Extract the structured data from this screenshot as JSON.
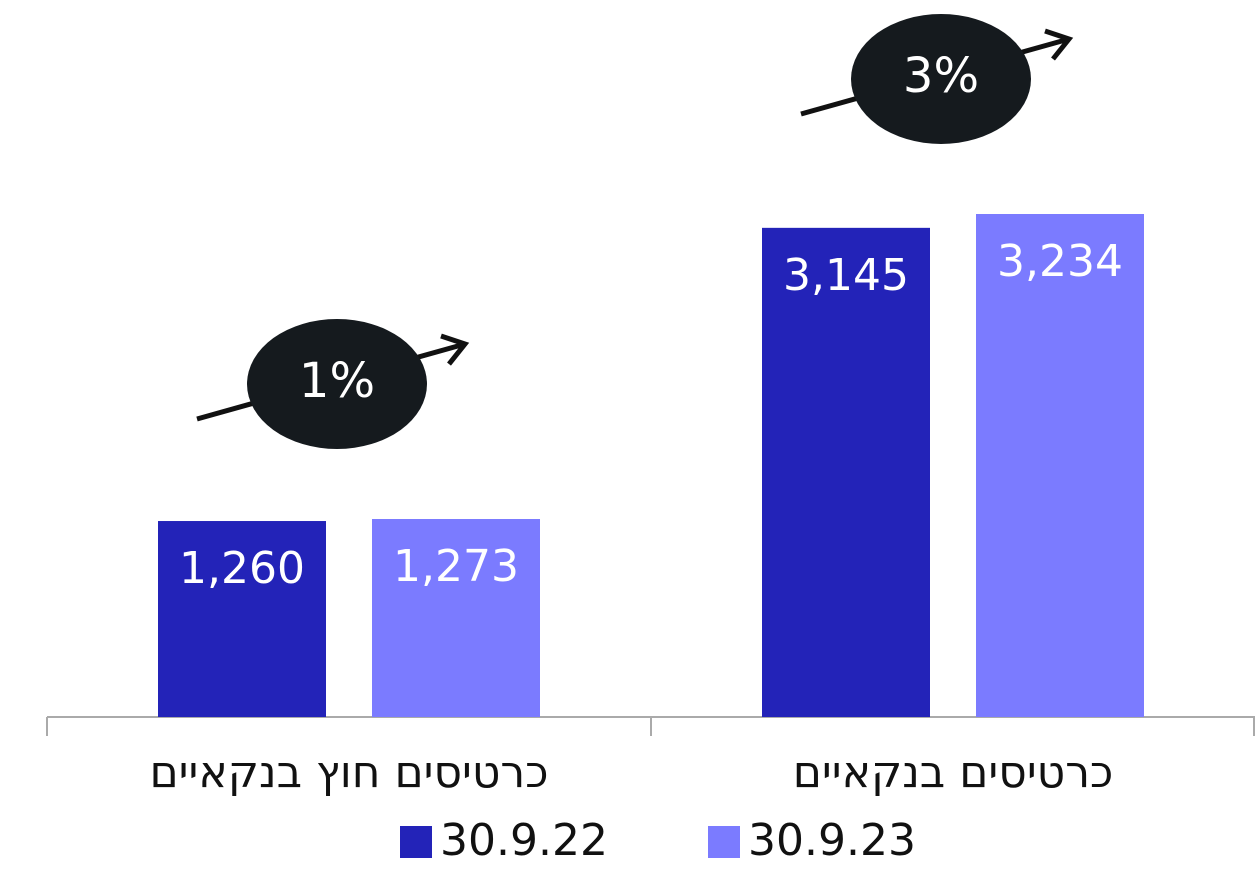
{
  "chart_data": {
    "type": "bar",
    "categories": [
      "כרטיסים חוץ בנקאיים",
      "כרטיסים בנקאיים"
    ],
    "series": [
      {
        "name": "30.9.22",
        "color": "#2323b8",
        "values": [
          1260,
          3145
        ],
        "value_labels": [
          "1,260",
          "3,145"
        ]
      },
      {
        "name": "30.9.23",
        "color": "#7b7bff",
        "values": [
          1273,
          3234
        ],
        "value_labels": [
          "1,273",
          "3,234"
        ]
      }
    ],
    "annotations": [
      "1%",
      "3%"
    ]
  }
}
